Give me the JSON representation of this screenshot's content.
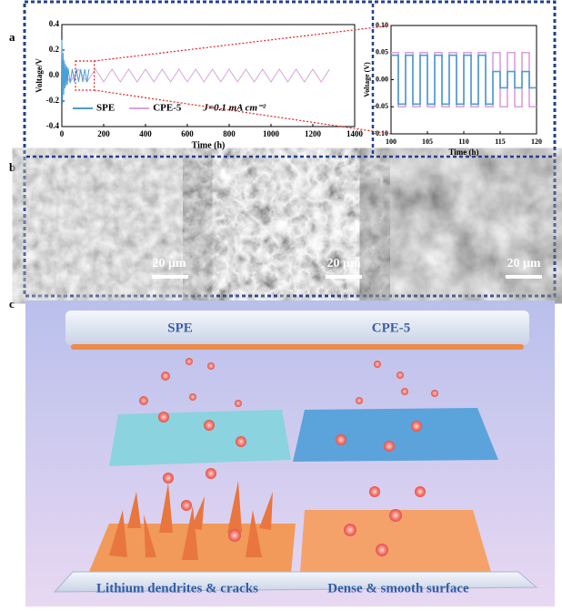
{
  "panels": [
    "a",
    "b",
    "c"
  ],
  "chart_data": [
    {
      "type": "line",
      "xlabel": "Time (h)",
      "ylabel": "Voltage/V",
      "xlim": [
        0,
        1400
      ],
      "xticks": [
        0,
        200,
        400,
        600,
        800,
        1000,
        1200,
        1400
      ],
      "ylim": [
        -0.4,
        0.4
      ],
      "yticks": [
        -0.4,
        -0.2,
        {
          "value": 0,
          "label": "0.0"
        },
        0.2,
        0.4
      ],
      "annotation": "J=0.1 mA cm⁻²",
      "legend": "lower left",
      "series": [
        {
          "name": "CPE-5",
          "color": "#d9a0dc",
          "x": [
            0,
            40,
            80,
            120,
            160,
            200,
            240,
            280,
            320,
            360,
            400,
            440,
            480,
            520,
            560,
            600,
            640,
            680,
            720,
            760,
            800,
            840,
            880,
            920,
            960,
            1000,
            1040,
            1080,
            1120,
            1160,
            1200,
            1240,
            1280
          ],
          "values": [
            0.05,
            -0.05,
            0.05,
            -0.05,
            0.05,
            -0.05,
            0.05,
            -0.05,
            0.05,
            -0.05,
            0.05,
            -0.05,
            0.05,
            -0.05,
            0.05,
            -0.05,
            0.05,
            -0.05,
            0.05,
            -0.05,
            0.05,
            -0.05,
            0.05,
            -0.05,
            0.05,
            -0.05,
            0.05,
            -0.05,
            0.05,
            -0.05,
            0.05,
            -0.05,
            0.05
          ]
        },
        {
          "name": "SPE",
          "color": "#4a9fd4",
          "x": [
            0,
            3,
            6,
            9,
            12,
            15,
            18,
            21,
            24,
            27,
            30,
            40,
            50,
            60,
            70,
            80,
            90,
            100,
            110,
            120,
            130
          ],
          "values": [
            0.28,
            -0.22,
            0.18,
            -0.15,
            0.12,
            -0.1,
            0.09,
            -0.08,
            0.07,
            -0.07,
            0.06,
            -0.06,
            0.05,
            -0.05,
            0.05,
            -0.05,
            0.05,
            -0.05,
            0.05,
            -0.05,
            0.05
          ]
        }
      ]
    },
    {
      "type": "line",
      "xlabel": "Time (h)",
      "ylabel": "Voltage (V)",
      "xlim": [
        100,
        120
      ],
      "xticks": [
        100,
        105,
        110,
        115,
        120
      ],
      "ylim": [
        -0.1,
        0.1
      ],
      "yticks": [
        {
          "value": -0.1,
          "label": "-0.10"
        },
        {
          "value": -0.05,
          "label": "-0.05"
        },
        {
          "value": 0,
          "label": "0.00"
        },
        {
          "value": 0.05,
          "label": "0.05"
        },
        {
          "value": 0.1,
          "label": "0.10"
        }
      ],
      "series": [
        {
          "name": "CPE-5",
          "color": "#d9a0dc",
          "x": [
            100,
            101,
            101,
            102,
            102,
            103,
            103,
            104,
            104,
            105,
            105,
            106,
            106,
            107,
            107,
            108,
            108,
            109,
            109,
            110,
            110,
            111,
            111,
            112,
            112,
            113,
            113,
            114,
            114,
            115,
            115,
            116,
            116,
            117,
            117,
            118,
            118,
            119,
            119,
            120
          ],
          "values": [
            0.05,
            0.05,
            -0.05,
            -0.05,
            0.05,
            0.05,
            -0.05,
            -0.05,
            0.05,
            0.05,
            -0.05,
            -0.05,
            0.05,
            0.05,
            -0.05,
            -0.05,
            0.05,
            0.05,
            -0.05,
            -0.05,
            0.05,
            0.05,
            -0.05,
            -0.05,
            0.05,
            0.05,
            -0.05,
            -0.05,
            0.05,
            0.05,
            -0.05,
            -0.05,
            0.05,
            0.05,
            -0.05,
            -0.05,
            0.05,
            0.05,
            -0.05,
            -0.05
          ]
        },
        {
          "name": "SPE",
          "color": "#4a9fd4",
          "x": [
            100,
            101,
            101,
            102,
            102,
            103,
            103,
            104,
            104,
            105,
            105,
            106,
            106,
            107,
            107,
            108,
            108,
            109,
            109,
            110,
            110,
            111,
            111,
            112,
            112,
            113,
            113,
            114,
            114,
            115,
            115,
            116,
            116,
            117,
            117,
            118,
            118,
            119,
            119,
            120
          ],
          "values": [
            0.045,
            0.045,
            -0.045,
            -0.045,
            0.045,
            0.045,
            -0.045,
            -0.045,
            0.045,
            0.045,
            -0.045,
            -0.045,
            0.045,
            0.045,
            -0.045,
            -0.045,
            0.045,
            0.045,
            -0.045,
            -0.045,
            0.045,
            0.045,
            -0.045,
            -0.045,
            0.045,
            0.045,
            -0.045,
            -0.045,
            0.015,
            0.015,
            -0.015,
            -0.015,
            0.015,
            0.015,
            -0.015,
            -0.015,
            0.015,
            0.015,
            -0.015,
            -0.015
          ]
        }
      ]
    }
  ],
  "sem_images": [
    {
      "scale": "20 μm"
    },
    {
      "scale": "20 μm"
    },
    {
      "scale": "20 μm"
    }
  ],
  "illustration": {
    "top_left": "SPE",
    "top_right": "CPE-5",
    "bottom_left": "Lithium dendrites & cracks",
    "bottom_right": "Dense & smooth surface"
  }
}
